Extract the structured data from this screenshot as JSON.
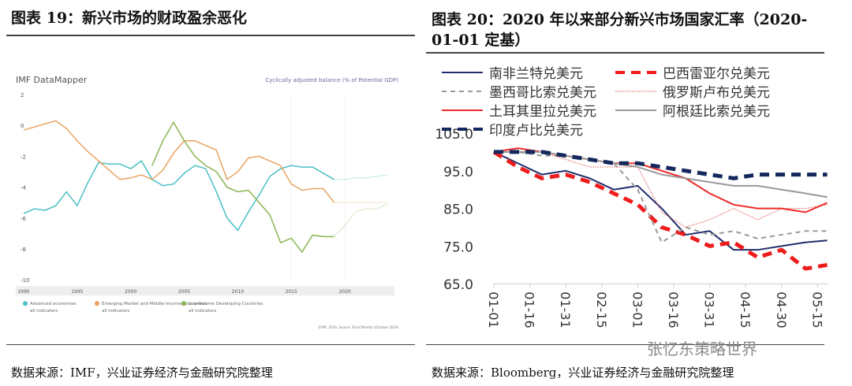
{
  "left": {
    "title": "图表 19：新兴市场的财政盈余恶化",
    "source": "数据来源：IMF，兴业证券经济与金融研究院整理"
  },
  "right": {
    "title": "图表 20：2020 年以来部分新兴市场国家汇率（2020-01-01 定基）",
    "source": "数据来源：Bloomberg，兴业证券经济与金融研究院整理"
  },
  "watermark": "张忆东策略世界",
  "chart_data": [
    {
      "type": "line",
      "title": "Cyclically adjusted balance (% of Potential GDP)",
      "brand": "IMF DataMapper",
      "credit": "©IMF, 2019, Source: Fiscal Monitor (October 2019)",
      "xlabel": "",
      "ylabel": "",
      "xlim": [
        1990,
        2024
      ],
      "ylim": [
        -10,
        2
      ],
      "xticks": [
        1990,
        1995,
        2000,
        2005,
        2010,
        2015,
        2020
      ],
      "yticks": [
        2,
        0,
        -2,
        -4,
        -6,
        -8,
        -10
      ],
      "projection_start": 2019,
      "legend_position": "bottom",
      "series": [
        {
          "name": "Advanced economies",
          "sub": "all indicators",
          "color": "#4bbfc4",
          "start": 1990,
          "values": [
            -5.7,
            -5.4,
            -5.5,
            -5.2,
            -4.3,
            -5.2,
            -3.7,
            -2.4,
            -2.5,
            -2.5,
            -2.8,
            -2.3,
            -3.5,
            -3.9,
            -3.8,
            -3.1,
            -2.6,
            -2.8,
            -4.3,
            -6.0,
            -6.8,
            -5.6,
            -4.5,
            -3.3,
            -2.8,
            -2.6,
            -2.7,
            -2.7,
            -3.1,
            -3.5,
            -3.5,
            -3.4,
            -3.4,
            -3.3,
            -3.2
          ]
        },
        {
          "name": "Emerging Market and Middle-Income Economies",
          "sub": "all indicators",
          "color": "#e8a462",
          "start": 1990,
          "values": [
            -0.3,
            -0.1,
            0.1,
            0.3,
            -0.2,
            -1.0,
            -1.7,
            -2.3,
            -2.9,
            -3.5,
            -3.4,
            -3.2,
            -3.5,
            -2.9,
            -1.8,
            -1.0,
            -1.0,
            -1.3,
            -1.6,
            -3.5,
            -3.0,
            -2.1,
            -2.0,
            -2.3,
            -2.6,
            -3.8,
            -4.2,
            -4.1,
            -4.1,
            -5.0,
            -5.0,
            -5.0,
            -5.0,
            -5.0,
            -5.0
          ]
        },
        {
          "name": "Low-Income Developing Countries",
          "sub": "all indicators",
          "color": "#8ab552",
          "start": 2002,
          "values": [
            -2.6,
            -1.0,
            0.2,
            -1.0,
            -2.0,
            -2.6,
            -3.0,
            -4.0,
            -4.3,
            -4.2,
            -5.0,
            -5.8,
            -7.6,
            -7.3,
            -8.2,
            -7.1,
            -7.2,
            -7.2,
            -6.5,
            -5.6,
            -5.4,
            -5.4,
            -5.1
          ]
        }
      ]
    },
    {
      "type": "line",
      "title": "2020 年以来部分新兴市场国家汇率（2020-01-01 定基）",
      "ylim": [
        65,
        105
      ],
      "yticks": [
        "105.0",
        "95.0",
        "85.0",
        "75.0",
        "65.0"
      ],
      "xticks": [
        "01-01",
        "01-16",
        "01-31",
        "02-15",
        "03-01",
        "03-16",
        "03-31",
        "04-15",
        "04-30",
        "05-15"
      ],
      "x_days": [
        0,
        10,
        20,
        30,
        40,
        50,
        60,
        70,
        80,
        90,
        100,
        110,
        120,
        130,
        139
      ],
      "legend_position": "top",
      "series": [
        {
          "name": "南非兰特兑美元",
          "color": "#1f2f6e",
          "style": "solid",
          "values": [
            100,
            97,
            94,
            95,
            93,
            90,
            91,
            85,
            78,
            79,
            74,
            74,
            75,
            76,
            76.5
          ]
        },
        {
          "name": "巴西雷亚尔兑美元",
          "color": "#ee1c1c",
          "style": "thickdash",
          "values": [
            100,
            96,
            93,
            94,
            92,
            89,
            86,
            80,
            78,
            75,
            76,
            72,
            74,
            69,
            70
          ]
        },
        {
          "name": "墨西哥比索兑美元",
          "color": "#999999",
          "style": "dash",
          "values": [
            100,
            100,
            99,
            99,
            98,
            97,
            90,
            76,
            80,
            78,
            79,
            77,
            78,
            79,
            79
          ]
        },
        {
          "name": "俄罗斯卢布兑美元",
          "color": "#e05050",
          "style": "dot",
          "values": [
            100,
            101,
            100,
            98,
            96,
            96,
            96,
            84,
            80,
            82,
            85,
            82,
            85,
            85,
            86
          ]
        },
        {
          "name": "土耳其里拉兑美元",
          "color": "#ee2a2a",
          "style": "solid",
          "values": [
            100,
            101,
            100,
            99,
            98,
            97,
            97,
            95,
            93,
            89,
            86,
            85,
            85,
            84,
            86.5
          ]
        },
        {
          "name": "阿根廷比索兑美元",
          "color": "#999999",
          "style": "solid",
          "values": [
            100,
            100,
            100,
            99,
            98,
            97,
            96,
            94,
            93,
            92,
            91,
            91,
            90,
            89,
            88
          ]
        },
        {
          "name": "印度卢比兑美元",
          "color": "#14285e",
          "style": "thickdash",
          "values": [
            100,
            100,
            100,
            99,
            98,
            97,
            97,
            96,
            95,
            94,
            93,
            94,
            94,
            94,
            94
          ]
        }
      ]
    }
  ]
}
